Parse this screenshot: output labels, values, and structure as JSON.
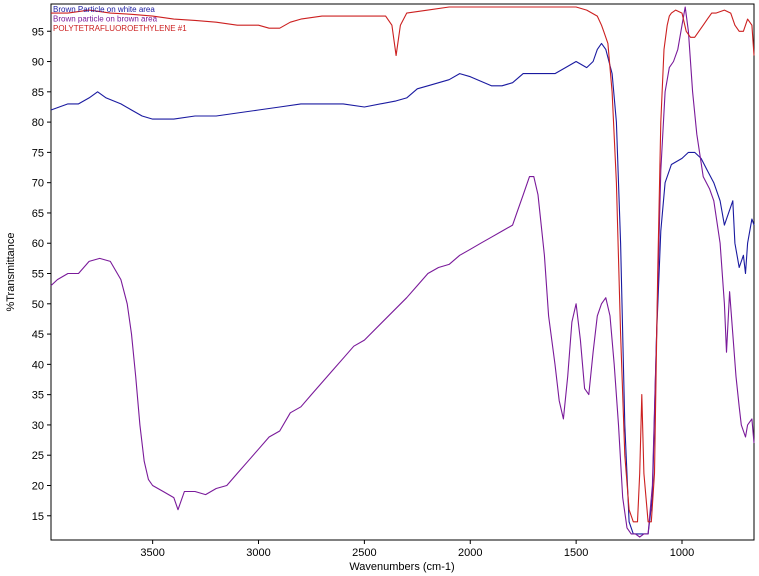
{
  "chart_data": {
    "type": "line",
    "xlabel": "Wavenumbers (cm-1)",
    "ylabel": "%Transmittance",
    "xlim": [
      3980,
      660
    ],
    "ylim": [
      11,
      99.5
    ],
    "x_ticks": [
      3500,
      3000,
      2500,
      2000,
      1500,
      1000
    ],
    "y_ticks": [
      15,
      20,
      25,
      30,
      35,
      40,
      45,
      50,
      55,
      60,
      65,
      70,
      75,
      80,
      85,
      90,
      95
    ],
    "legend_position": "top-left",
    "grid": false,
    "series": [
      {
        "name": "Brown Particle on white area",
        "color": "#1a1aa0",
        "points": [
          [
            3980,
            82
          ],
          [
            3900,
            83
          ],
          [
            3850,
            83
          ],
          [
            3800,
            84
          ],
          [
            3760,
            85
          ],
          [
            3720,
            84
          ],
          [
            3650,
            83
          ],
          [
            3600,
            82
          ],
          [
            3550,
            81
          ],
          [
            3500,
            80.5
          ],
          [
            3400,
            80.5
          ],
          [
            3300,
            81
          ],
          [
            3200,
            81
          ],
          [
            3100,
            81.5
          ],
          [
            3000,
            82
          ],
          [
            2900,
            82.5
          ],
          [
            2800,
            83
          ],
          [
            2700,
            83
          ],
          [
            2600,
            83
          ],
          [
            2500,
            82.5
          ],
          [
            2350,
            83.5
          ],
          [
            2300,
            84
          ],
          [
            2250,
            85.5
          ],
          [
            2200,
            86
          ],
          [
            2100,
            87
          ],
          [
            2050,
            88
          ],
          [
            2000,
            87.5
          ],
          [
            1900,
            86
          ],
          [
            1850,
            86
          ],
          [
            1800,
            86.5
          ],
          [
            1750,
            88
          ],
          [
            1700,
            88
          ],
          [
            1650,
            88
          ],
          [
            1600,
            88
          ],
          [
            1550,
            89
          ],
          [
            1500,
            90
          ],
          [
            1450,
            89
          ],
          [
            1420,
            90
          ],
          [
            1400,
            92
          ],
          [
            1380,
            93
          ],
          [
            1360,
            92
          ],
          [
            1330,
            88
          ],
          [
            1310,
            80
          ],
          [
            1290,
            60
          ],
          [
            1270,
            30
          ],
          [
            1250,
            14
          ],
          [
            1230,
            12
          ],
          [
            1200,
            12
          ],
          [
            1180,
            12
          ],
          [
            1160,
            12
          ],
          [
            1140,
            18
          ],
          [
            1120,
            45
          ],
          [
            1100,
            62
          ],
          [
            1080,
            70
          ],
          [
            1050,
            73
          ],
          [
            1000,
            74
          ],
          [
            970,
            75
          ],
          [
            940,
            75
          ],
          [
            910,
            74
          ],
          [
            880,
            72
          ],
          [
            850,
            70
          ],
          [
            820,
            67
          ],
          [
            800,
            63
          ],
          [
            780,
            65
          ],
          [
            760,
            67
          ],
          [
            750,
            60
          ],
          [
            730,
            56
          ],
          [
            710,
            58
          ],
          [
            700,
            55
          ],
          [
            690,
            60
          ],
          [
            670,
            64
          ],
          [
            660,
            63
          ]
        ]
      },
      {
        "name": "Brown particle on brown area",
        "color": "#7a1a9a",
        "points": [
          [
            3980,
            53
          ],
          [
            3950,
            54
          ],
          [
            3900,
            55
          ],
          [
            3850,
            55
          ],
          [
            3800,
            57
          ],
          [
            3750,
            57.5
          ],
          [
            3700,
            57
          ],
          [
            3650,
            54
          ],
          [
            3620,
            50
          ],
          [
            3600,
            45
          ],
          [
            3580,
            38
          ],
          [
            3560,
            30
          ],
          [
            3540,
            24
          ],
          [
            3520,
            21
          ],
          [
            3500,
            20
          ],
          [
            3450,
            19
          ],
          [
            3400,
            18
          ],
          [
            3380,
            16
          ],
          [
            3350,
            19
          ],
          [
            3300,
            19
          ],
          [
            3250,
            18.5
          ],
          [
            3200,
            19.5
          ],
          [
            3150,
            20
          ],
          [
            3100,
            22
          ],
          [
            3050,
            24
          ],
          [
            3000,
            26
          ],
          [
            2950,
            28
          ],
          [
            2900,
            29
          ],
          [
            2850,
            32
          ],
          [
            2800,
            33
          ],
          [
            2750,
            35
          ],
          [
            2700,
            37
          ],
          [
            2650,
            39
          ],
          [
            2600,
            41
          ],
          [
            2550,
            43
          ],
          [
            2500,
            44
          ],
          [
            2300,
            51
          ],
          [
            2250,
            53
          ],
          [
            2200,
            55
          ],
          [
            2150,
            56
          ],
          [
            2100,
            56.5
          ],
          [
            2050,
            58
          ],
          [
            2000,
            59
          ],
          [
            1950,
            60
          ],
          [
            1900,
            61
          ],
          [
            1850,
            62
          ],
          [
            1800,
            63
          ],
          [
            1780,
            65
          ],
          [
            1750,
            68
          ],
          [
            1720,
            71
          ],
          [
            1700,
            71
          ],
          [
            1680,
            68
          ],
          [
            1650,
            58
          ],
          [
            1630,
            48
          ],
          [
            1600,
            40
          ],
          [
            1580,
            34
          ],
          [
            1560,
            31
          ],
          [
            1540,
            38
          ],
          [
            1520,
            47
          ],
          [
            1500,
            50
          ],
          [
            1480,
            44
          ],
          [
            1460,
            36
          ],
          [
            1440,
            35
          ],
          [
            1420,
            42
          ],
          [
            1400,
            48
          ],
          [
            1380,
            50
          ],
          [
            1360,
            51
          ],
          [
            1340,
            48
          ],
          [
            1320,
            40
          ],
          [
            1300,
            30
          ],
          [
            1280,
            18
          ],
          [
            1260,
            13
          ],
          [
            1240,
            12
          ],
          [
            1220,
            12
          ],
          [
            1200,
            11.5
          ],
          [
            1180,
            12
          ],
          [
            1160,
            12
          ],
          [
            1140,
            20
          ],
          [
            1120,
            45
          ],
          [
            1100,
            72
          ],
          [
            1080,
            85
          ],
          [
            1060,
            89
          ],
          [
            1040,
            90
          ],
          [
            1020,
            92
          ],
          [
            1000,
            96
          ],
          [
            985,
            99
          ],
          [
            970,
            95
          ],
          [
            950,
            85
          ],
          [
            930,
            78
          ],
          [
            900,
            71
          ],
          [
            870,
            69
          ],
          [
            850,
            67
          ],
          [
            820,
            60
          ],
          [
            800,
            50
          ],
          [
            790,
            42
          ],
          [
            775,
            52
          ],
          [
            760,
            45
          ],
          [
            745,
            38
          ],
          [
            730,
            33
          ],
          [
            720,
            30
          ],
          [
            700,
            28
          ],
          [
            690,
            30
          ],
          [
            670,
            31
          ],
          [
            660,
            27
          ]
        ]
      },
      {
        "name": "POLYTETRAFLUOROETHYLENE #1",
        "color": "#cc2020",
        "points": [
          [
            3980,
            98
          ],
          [
            3900,
            98
          ],
          [
            3800,
            98.5
          ],
          [
            3700,
            98
          ],
          [
            3600,
            97.8
          ],
          [
            3500,
            97.5
          ],
          [
            3400,
            97
          ],
          [
            3300,
            96.8
          ],
          [
            3200,
            96.5
          ],
          [
            3100,
            96
          ],
          [
            3000,
            96
          ],
          [
            2950,
            95.5
          ],
          [
            2900,
            95.5
          ],
          [
            2850,
            96.5
          ],
          [
            2800,
            97
          ],
          [
            2700,
            97.5
          ],
          [
            2600,
            97.5
          ],
          [
            2500,
            97.5
          ],
          [
            2400,
            97.5
          ],
          [
            2370,
            96
          ],
          [
            2350,
            91
          ],
          [
            2330,
            96
          ],
          [
            2300,
            98
          ],
          [
            2200,
            98.5
          ],
          [
            2100,
            99
          ],
          [
            2000,
            99
          ],
          [
            1900,
            99
          ],
          [
            1800,
            99
          ],
          [
            1700,
            99
          ],
          [
            1600,
            99
          ],
          [
            1550,
            99
          ],
          [
            1500,
            99
          ],
          [
            1450,
            98.5
          ],
          [
            1400,
            97.5
          ],
          [
            1380,
            96
          ],
          [
            1370,
            95
          ],
          [
            1350,
            93
          ],
          [
            1330,
            85
          ],
          [
            1310,
            70
          ],
          [
            1290,
            45
          ],
          [
            1270,
            25
          ],
          [
            1250,
            16
          ],
          [
            1230,
            14
          ],
          [
            1210,
            14
          ],
          [
            1200,
            22
          ],
          [
            1190,
            35
          ],
          [
            1180,
            22
          ],
          [
            1160,
            14
          ],
          [
            1145,
            14
          ],
          [
            1130,
            22
          ],
          [
            1115,
            55
          ],
          [
            1100,
            80
          ],
          [
            1085,
            92
          ],
          [
            1070,
            96
          ],
          [
            1060,
            97.5
          ],
          [
            1050,
            98
          ],
          [
            1030,
            98.5
          ],
          [
            1000,
            98
          ],
          [
            980,
            95
          ],
          [
            960,
            94
          ],
          [
            940,
            94
          ],
          [
            920,
            95
          ],
          [
            900,
            96
          ],
          [
            880,
            97
          ],
          [
            860,
            98
          ],
          [
            840,
            98
          ],
          [
            800,
            98.5
          ],
          [
            770,
            98
          ],
          [
            750,
            96
          ],
          [
            730,
            95
          ],
          [
            710,
            95
          ],
          [
            690,
            97
          ],
          [
            670,
            96
          ],
          [
            660,
            91
          ]
        ]
      }
    ]
  }
}
